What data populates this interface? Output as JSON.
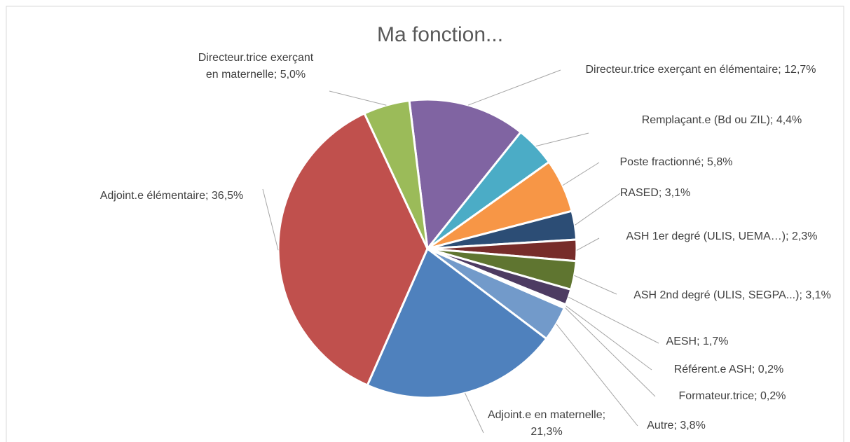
{
  "chart_data": {
    "type": "pie",
    "title": "Ma fonction...",
    "label_separator": "; ",
    "categories": [
      "Directeur.trice exerçant en élémentaire",
      "Remplaçant.e (Bd ou ZIL)",
      "Poste fractionné",
      "RASED",
      "ASH 1er degré (ULIS, UEMA…)",
      "ASH 2nd degré (ULIS, SEGPA...)",
      "AESH",
      "Référent.e ASH",
      "Formateur.trice",
      "Autre",
      "Adjoint.e en maternelle",
      "Adjoint.e élémentaire",
      "Directeur.trice exerçant en maternelle"
    ],
    "values": [
      12.7,
      4.4,
      5.8,
      3.1,
      2.3,
      3.1,
      1.7,
      0.2,
      0.2,
      3.8,
      21.3,
      36.5,
      5.0
    ],
    "value_labels": [
      "12,7%",
      "4,4%",
      "5,8%",
      "3,1%",
      "2,3%",
      "3,1%",
      "1,7%",
      "0,2%",
      "0,2%",
      "3,8%",
      "21,3%",
      "36,5%",
      "5,0%"
    ],
    "colors": [
      "#8064a2",
      "#4bacc6",
      "#f79646",
      "#2c4d75",
      "#772c2a",
      "#5f7530",
      "#4d3b62",
      "#2a6f85",
      "#b65708",
      "#729aca",
      "#4f81bd",
      "#c0504d",
      "#9bbb59"
    ]
  }
}
